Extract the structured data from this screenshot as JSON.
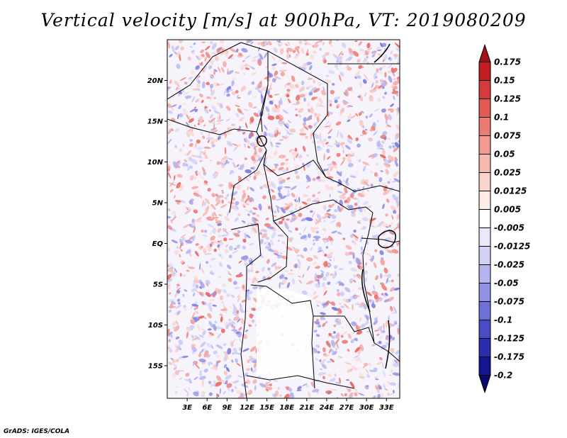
{
  "map": {
    "title": "Vertical velocity [m/s] at 900hPa, VT: 2019080209",
    "credit": "GrADS: IGES/COLA",
    "lon_range": [
      0,
      35
    ],
    "lat_range": [
      -19,
      25
    ],
    "lat_ticks": [
      {
        "value": 20,
        "label": "20N"
      },
      {
        "value": 15,
        "label": "15N"
      },
      {
        "value": 10,
        "label": "10N"
      },
      {
        "value": 5,
        "label": "5N"
      },
      {
        "value": 0,
        "label": "EQ"
      },
      {
        "value": -5,
        "label": "5S"
      },
      {
        "value": -10,
        "label": "10S"
      },
      {
        "value": -15,
        "label": "15S"
      }
    ],
    "lon_ticks": [
      {
        "value": 3,
        "label": "3E"
      },
      {
        "value": 6,
        "label": "6E"
      },
      {
        "value": 9,
        "label": "9E"
      },
      {
        "value": 12,
        "label": "12E"
      },
      {
        "value": 15,
        "label": "15E"
      },
      {
        "value": 18,
        "label": "18E"
      },
      {
        "value": 21,
        "label": "21E"
      },
      {
        "value": 24,
        "label": "24E"
      },
      {
        "value": 27,
        "label": "27E"
      },
      {
        "value": 30,
        "label": "30E"
      },
      {
        "value": 33,
        "label": "33E"
      }
    ]
  },
  "colorbar": {
    "labels": [
      "0.175",
      "0.15",
      "0.125",
      "0.1",
      "0.075",
      "0.05",
      "0.025",
      "0.0125",
      "0.005",
      "-0.005",
      "-0.0125",
      "-0.025",
      "-0.05",
      "-0.075",
      "-0.1",
      "-0.125",
      "-0.175",
      "-0.2"
    ],
    "colors": [
      "#a50f15",
      "#c21d23",
      "#d73a3a",
      "#e35a55",
      "#ec7b73",
      "#f29a92",
      "#f7b8b0",
      "#fbd4ce",
      "#fdebe8",
      "#ffffff",
      "#e9e9fb",
      "#d2d2f6",
      "#b4b4ee",
      "#9292e5",
      "#6f6fd8",
      "#4b4bc6",
      "#2c2caf",
      "#151590",
      "#0a0a6e"
    ]
  }
}
